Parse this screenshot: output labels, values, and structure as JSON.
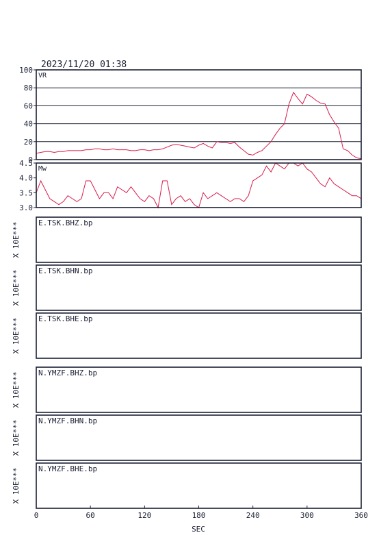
{
  "timestamp": "2023/11/20 01:38",
  "xlabel": "SEC",
  "x_ticks": [
    0,
    60,
    120,
    180,
    240,
    300,
    360
  ],
  "xlim": [
    0,
    360
  ],
  "colors": {
    "frame": "#1a1f33",
    "curve": "#d81b4a"
  },
  "chart_data": [
    {
      "type": "line",
      "label": "VR",
      "ylim": [
        0,
        100
      ],
      "y_ticks": [
        0,
        20,
        40,
        60,
        80,
        100
      ],
      "grid": true,
      "x": [
        0,
        5,
        10,
        15,
        20,
        25,
        30,
        35,
        40,
        45,
        50,
        55,
        60,
        65,
        70,
        75,
        80,
        85,
        90,
        95,
        100,
        105,
        110,
        115,
        120,
        125,
        130,
        135,
        140,
        145,
        150,
        155,
        160,
        165,
        170,
        175,
        180,
        185,
        190,
        195,
        200,
        205,
        210,
        215,
        220,
        225,
        230,
        235,
        240,
        245,
        250,
        255,
        260,
        265,
        270,
        275,
        280,
        285,
        290,
        295,
        300,
        305,
        310,
        315,
        320,
        325,
        330,
        335,
        340,
        345,
        350,
        355,
        360
      ],
      "y": [
        7,
        8,
        9,
        9,
        8,
        9,
        9,
        10,
        10,
        10,
        10,
        11,
        11,
        12,
        12,
        11,
        11,
        12,
        11,
        11,
        11,
        10,
        10,
        11,
        11,
        10,
        11,
        11,
        12,
        14,
        16,
        17,
        16,
        15,
        14,
        13,
        16,
        18,
        15,
        13,
        20,
        19,
        19,
        18,
        19,
        14,
        10,
        6,
        5,
        8,
        10,
        15,
        20,
        28,
        35,
        40,
        62,
        75,
        68,
        62,
        73,
        70,
        66,
        63,
        62,
        50,
        42,
        35,
        12,
        10,
        5,
        2,
        1
      ]
    },
    {
      "type": "line",
      "label": "Mw",
      "ylim": [
        3.0,
        4.5
      ],
      "y_ticks": [
        3.0,
        3.5,
        4.0,
        4.5
      ],
      "grid": false,
      "x": [
        0,
        5,
        10,
        15,
        20,
        25,
        30,
        35,
        40,
        45,
        50,
        55,
        60,
        65,
        70,
        75,
        80,
        85,
        90,
        95,
        100,
        105,
        110,
        115,
        120,
        125,
        130,
        135,
        140,
        145,
        150,
        155,
        160,
        165,
        170,
        175,
        180,
        185,
        190,
        195,
        200,
        205,
        210,
        215,
        220,
        225,
        230,
        235,
        240,
        245,
        250,
        255,
        260,
        265,
        270,
        275,
        280,
        285,
        290,
        295,
        300,
        305,
        310,
        315,
        320,
        325,
        330,
        335,
        340,
        345,
        350,
        355,
        360
      ],
      "y": [
        3.5,
        3.9,
        3.6,
        3.3,
        3.2,
        3.1,
        3.2,
        3.4,
        3.3,
        3.2,
        3.3,
        3.9,
        3.9,
        3.6,
        3.3,
        3.5,
        3.5,
        3.3,
        3.7,
        3.6,
        3.5,
        3.7,
        3.5,
        3.3,
        3.2,
        3.4,
        3.3,
        3.0,
        3.9,
        3.9,
        3.1,
        3.3,
        3.4,
        3.2,
        3.3,
        3.1,
        3.0,
        3.5,
        3.3,
        3.4,
        3.5,
        3.4,
        3.3,
        3.2,
        3.3,
        3.3,
        3.2,
        3.4,
        3.9,
        4.0,
        4.1,
        4.4,
        4.2,
        4.5,
        4.4,
        4.3,
        4.5,
        4.5,
        4.4,
        4.5,
        4.3,
        4.2,
        4.0,
        3.8,
        3.7,
        4.0,
        3.8,
        3.7,
        3.6,
        3.5,
        3.4,
        3.4,
        3.3
      ]
    }
  ],
  "traces": [
    {
      "label": "E.TSK.BHZ.bp",
      "scale": "X 10E***"
    },
    {
      "label": "E.TSK.BHN.bp",
      "scale": "X 10E***"
    },
    {
      "label": "E.TSK.BHE.bp",
      "scale": "X 10E***"
    },
    {
      "label": "N.YMZF.BHZ.bp",
      "scale": "X 10E***"
    },
    {
      "label": "N.YMZF.BHN.bp",
      "scale": "X 10E***"
    },
    {
      "label": "N.YMZF.BHE.bp",
      "scale": "X 10E***"
    }
  ]
}
